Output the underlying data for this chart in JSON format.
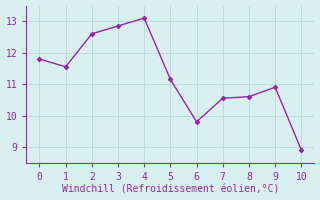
{
  "x": [
    0,
    1,
    2,
    3,
    4,
    5,
    6,
    7,
    8,
    9,
    10
  ],
  "y": [
    11.8,
    11.55,
    12.6,
    12.85,
    13.1,
    11.15,
    9.8,
    10.55,
    10.6,
    10.9,
    8.9
  ],
  "line_color": "#9922aa",
  "marker": "D",
  "marker_size": 2.5,
  "xlabel": "Windchill (Refroidissement éolien,°C)",
  "xlabel_color": "#9922aa",
  "ylim": [
    8.5,
    13.5
  ],
  "xlim": [
    -0.5,
    10.5
  ],
  "yticks": [
    9,
    10,
    11,
    12,
    13
  ],
  "xticks": [
    0,
    1,
    2,
    3,
    4,
    5,
    6,
    7,
    8,
    9,
    10
  ],
  "background_color": "#d8f0f0",
  "grid_color": "#b8d8d8",
  "tick_color": "#9922aa",
  "spine_color": "#9922aa",
  "font_family": "monospace",
  "tick_labelsize": 7,
  "xlabel_fontsize": 7
}
